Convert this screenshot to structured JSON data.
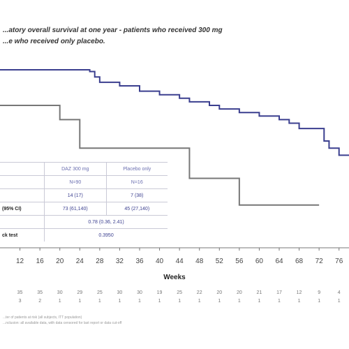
{
  "title_lines": [
    "...atory overall survival at one year - patients who received 300 mg",
    "...e who received only placebo."
  ],
  "legend_table": {
    "header": [
      "",
      "DAZ 300 mg",
      "Placebo only"
    ],
    "subheader": [
      "",
      "N=90",
      "N=16"
    ],
    "rows": [
      [
        "",
        "14 (17)",
        "7 (38)"
      ],
      [
        "(95% CI)",
        "73 (61,140)",
        "45 (27,140)"
      ],
      [
        "",
        "0.78 (0.36, 2.41)",
        ""
      ],
      [
        "ck test",
        "0.3950",
        ""
      ]
    ]
  },
  "chart_data": {
    "type": "line",
    "title": "",
    "xlabel": "Weeks",
    "ylabel": "",
    "xlim": [
      8,
      78
    ],
    "ylim": [
      0,
      1
    ],
    "x_ticks": [
      12,
      16,
      20,
      24,
      28,
      32,
      36,
      40,
      44,
      48,
      52,
      56,
      60,
      64,
      68,
      72,
      76
    ],
    "series": [
      {
        "name": "DAZ 300 mg",
        "color": "#3b3f8f",
        "x": [
          8,
          26,
          27,
          28,
          32,
          36,
          40,
          44,
          46,
          50,
          52,
          56,
          60,
          64,
          66,
          68,
          72,
          73,
          74,
          76,
          78
        ],
        "y": [
          1.0,
          0.99,
          0.96,
          0.93,
          0.91,
          0.88,
          0.86,
          0.84,
          0.82,
          0.8,
          0.78,
          0.76,
          0.74,
          0.72,
          0.7,
          0.67,
          0.67,
          0.6,
          0.56,
          0.52,
          0.52
        ]
      },
      {
        "name": "Placebo only",
        "color": "#777777",
        "x": [
          8,
          20,
          24,
          46,
          56,
          72
        ],
        "y": [
          0.8,
          0.72,
          0.56,
          0.39,
          0.24,
          0.24
        ]
      }
    ]
  },
  "at_risk": {
    "row1": [
      "35",
      "35",
      "30",
      "29",
      "25",
      "30",
      "30",
      "19",
      "25",
      "22",
      "20",
      "20",
      "21",
      "17",
      "12",
      "9",
      "4"
    ],
    "row2": [
      "3",
      "2",
      "1",
      "1",
      "1",
      "1",
      "1",
      "1",
      "1",
      "1",
      "1",
      "1",
      "1",
      "1",
      "1",
      "1",
      "1"
    ]
  },
  "footnotes": [
    "...ter of patients at risk (all subjects, ITT population)",
    "...nclusion: all available data, with data censored for last report or data cut-off"
  ]
}
